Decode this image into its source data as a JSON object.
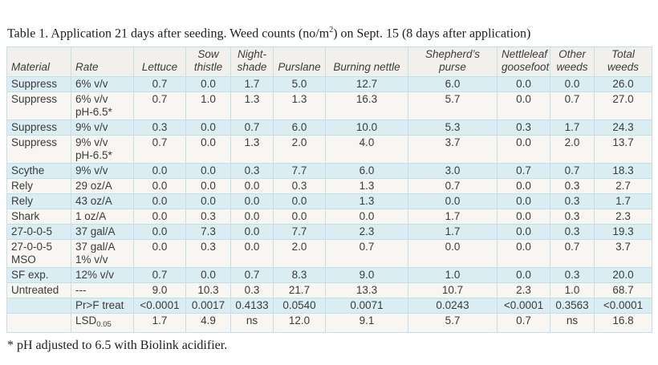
{
  "title": {
    "pre": "Table 1. Application 21 days after seeding. Weed counts (no/m",
    "sup": "2",
    "post": ") on Sept. 15 (8 days after application)"
  },
  "table": {
    "columns": [
      "Material",
      "Rate",
      "Lettuce",
      "Sow\nthistle",
      "Night-\nshade",
      "Purslane",
      "Burning nettle",
      "Shepherd’s purse",
      "Nettleleaf\ngoosefoot",
      "Other\nweeds",
      "Total\nweeds"
    ],
    "rows": [
      {
        "material": "Suppress",
        "rate": "6% v/v",
        "values": [
          "0.7",
          "0.0",
          "1.7",
          "5.0",
          "12.7",
          "6.0",
          "0.0",
          "0.0",
          "26.0"
        ]
      },
      {
        "material": "Suppress",
        "rate": "6% v/v\npH-6.5*",
        "values": [
          "0.7",
          "1.0",
          "1.3",
          "1.3",
          "16.3",
          "5.7",
          "0.0",
          "0.7",
          "27.0"
        ]
      },
      {
        "material": "Suppress",
        "rate": "9% v/v",
        "values": [
          "0.3",
          "0.0",
          "0.7",
          "6.0",
          "10.0",
          "5.3",
          "0.3",
          "1.7",
          "24.3"
        ]
      },
      {
        "material": "Suppress",
        "rate": "9% v/v\npH-6.5*",
        "values": [
          "0.7",
          "0.0",
          "1.3",
          "2.0",
          "4.0",
          "3.7",
          "0.0",
          "2.0",
          "13.7"
        ]
      },
      {
        "material": "Scythe",
        "rate": "9% v/v",
        "values": [
          "0.0",
          "0.0",
          "0.3",
          "7.7",
          "6.0",
          "3.0",
          "0.7",
          "0.7",
          "18.3"
        ]
      },
      {
        "material": "Rely",
        "rate": "29 oz/A",
        "values": [
          "0.0",
          "0.0",
          "0.0",
          "0.3",
          "1.3",
          "0.7",
          "0.0",
          "0.3",
          "2.7"
        ]
      },
      {
        "material": "Rely",
        "rate": "43 oz/A",
        "values": [
          "0.0",
          "0.0",
          "0.0",
          "0.0",
          "1.3",
          "0.0",
          "0.0",
          "0.3",
          "1.7"
        ]
      },
      {
        "material": "Shark",
        "rate": "1 oz/A",
        "values": [
          "0.0",
          "0.3",
          "0.0",
          "0.0",
          "0.0",
          "1.7",
          "0.0",
          "0.3",
          "2.3"
        ]
      },
      {
        "material": "27-0-0-5",
        "rate": "37 gal/A",
        "values": [
          "0.0",
          "7.3",
          "0.0",
          "7.7",
          "2.3",
          "1.7",
          "0.0",
          "0.3",
          "19.3"
        ]
      },
      {
        "material": "27-0-0-5\nMSO",
        "rate": "37 gal/A\n1% v/v",
        "values": [
          "0.0",
          "0.3",
          "0.0",
          "2.0",
          "0.7",
          "0.0",
          "0.0",
          "0.7",
          "3.7"
        ]
      },
      {
        "material": "SF exp.",
        "rate": "12% v/v",
        "values": [
          "0.7",
          "0.0",
          "0.7",
          "8.3",
          "9.0",
          "1.0",
          "0.0",
          "0.3",
          "20.0"
        ]
      },
      {
        "material": "Untreated",
        "rate": "---",
        "values": [
          "9.0",
          "10.3",
          "0.3",
          "21.7",
          "13.3",
          "10.7",
          "2.3",
          "1.0",
          "68.7"
        ]
      },
      {
        "material": "",
        "rate": "Pr>F treat",
        "values": [
          "<0.0001",
          "0.0017",
          "0.4133",
          "0.0540",
          "0.0071",
          "0.0243",
          "<0.0001",
          "0.3563",
          "<0.0001"
        ]
      },
      {
        "material": "",
        "rate": "LSD",
        "rate_sub": "0.05",
        "values": [
          "1.7",
          "4.9",
          "ns",
          "12.0",
          "9.1",
          "5.7",
          "0.7",
          "ns",
          "16.8"
        ]
      }
    ]
  },
  "footnote": "* pH adjusted to 6.5 with Biolink acidifier."
}
